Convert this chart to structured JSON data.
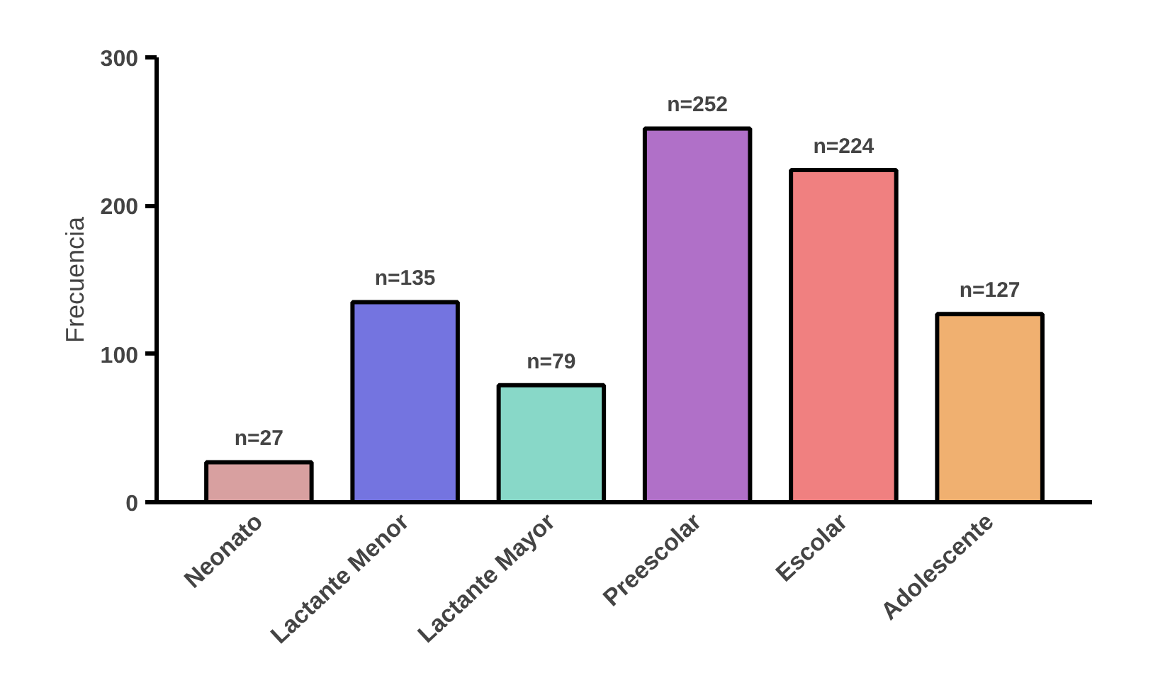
{
  "chart_data": {
    "type": "bar",
    "ylabel": "Frecuencia",
    "categories": [
      "Neonato",
      "Lactante Menor",
      "Lactante Mayor",
      "Preescolar",
      "Escolar",
      "Adolescente"
    ],
    "values": [
      27,
      135,
      79,
      252,
      224,
      127
    ],
    "colors": [
      "#d8a0a0",
      "#7474e0",
      "#88d8c8",
      "#b070c8",
      "#f08080",
      "#f0b070"
    ],
    "value_labels": [
      "n=27",
      "n=135",
      "n=79",
      "n=252",
      "n=224",
      "n=127"
    ],
    "ylim": [
      0,
      300
    ],
    "yticks": [
      0,
      100,
      200,
      300
    ],
    "grid": false
  }
}
